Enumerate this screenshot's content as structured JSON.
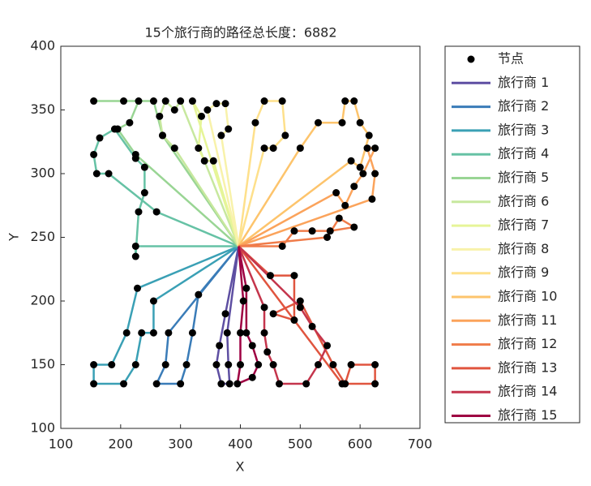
{
  "chart_data": {
    "type": "line",
    "title": "15个旅行商的路径总长度：6882",
    "xlabel": "X",
    "ylabel": "Y",
    "xlim": [
      100,
      700
    ],
    "ylim": [
      100,
      400
    ],
    "xticks": [
      100,
      200,
      300,
      400,
      500,
      600,
      700
    ],
    "yticks": [
      100,
      150,
      200,
      250,
      300,
      350,
      400
    ],
    "grid": false,
    "legend": "outside-right",
    "node_label": "节点",
    "node_color": "#000000",
    "series": [
      {
        "name": "旅行商 1",
        "color": "#5e4fa2",
        "x": [
          397,
          375,
          365,
          360,
          368,
          382,
          380,
          378,
          397
        ],
        "y": [
          243,
          190,
          165,
          150,
          135,
          135,
          150,
          175,
          243
        ]
      },
      {
        "name": "旅行商 2",
        "color": "#3a7cb8",
        "x": [
          397,
          330,
          320,
          310,
          300,
          260,
          275,
          280,
          397
        ],
        "y": [
          243,
          205,
          175,
          150,
          135,
          135,
          150,
          175,
          243
        ]
      },
      {
        "name": "旅行商 3",
        "color": "#3aa0b5",
        "x": [
          397,
          255,
          255,
          235,
          225,
          205,
          155,
          155,
          185,
          210,
          228,
          397
        ],
        "y": [
          243,
          200,
          175,
          175,
          150,
          135,
          135,
          150,
          150,
          175,
          210,
          243
        ]
      },
      {
        "name": "旅行商 4",
        "color": "#66c2a5",
        "x": [
          397,
          225,
          225,
          230,
          240,
          240,
          225,
          190,
          165,
          155,
          160,
          180,
          260,
          397
        ],
        "y": [
          243,
          243,
          235,
          270,
          285,
          305,
          312,
          335,
          328,
          315,
          300,
          300,
          270,
          243
        ]
      },
      {
        "name": "旅行商 5",
        "color": "#99d594",
        "x": [
          397,
          225,
          195,
          215,
          230,
          155,
          205,
          255,
          270,
          397
        ],
        "y": [
          243,
          315,
          335,
          340,
          357,
          357,
          357,
          357,
          330,
          243
        ]
      },
      {
        "name": "旅行商 6",
        "color": "#c7e89e",
        "x": [
          397,
          300,
          290,
          275,
          265,
          270,
          290,
          397
        ],
        "y": [
          243,
          357,
          350,
          357,
          345,
          330,
          320,
          243
        ]
      },
      {
        "name": "旅行商 7",
        "color": "#e6f598",
        "x": [
          397,
          320,
          335,
          330,
          340,
          355,
          397
        ],
        "y": [
          243,
          357,
          345,
          320,
          310,
          310,
          243
        ]
      },
      {
        "name": "旅行商 8",
        "color": "#f8f2aa",
        "x": [
          397,
          345,
          360,
          375,
          380,
          368,
          397
        ],
        "y": [
          243,
          350,
          355,
          355,
          335,
          330,
          243
        ]
      },
      {
        "name": "旅行商 9",
        "color": "#fee08b",
        "x": [
          397,
          425,
          440,
          470,
          475,
          455,
          440,
          397
        ],
        "y": [
          243,
          340,
          357,
          357,
          330,
          320,
          320,
          243
        ]
      },
      {
        "name": "旅行商 10",
        "color": "#fdc46c",
        "x": [
          397,
          500,
          530,
          570,
          575,
          590,
          600,
          615,
          600,
          585,
          397
        ],
        "y": [
          243,
          320,
          340,
          340,
          357,
          357,
          340,
          330,
          305,
          310,
          243
        ]
      },
      {
        "name": "旅行商 11",
        "color": "#fba35b",
        "x": [
          397,
          560,
          575,
          590,
          605,
          625,
          612,
          625,
          620,
          397
        ],
        "y": [
          243,
          285,
          275,
          290,
          300,
          320,
          320,
          300,
          280,
          243
        ]
      },
      {
        "name": "旅行商 12",
        "color": "#f07c4a",
        "x": [
          397,
          470,
          490,
          520,
          550,
          590,
          565,
          545,
          397
        ],
        "y": [
          243,
          243,
          255,
          255,
          255,
          258,
          265,
          250,
          243
        ]
      },
      {
        "name": "旅行商 13",
        "color": "#e0553f",
        "x": [
          397,
          450,
          490,
          490,
          455,
          500,
          555,
          575,
          585,
          625,
          625,
          570,
          397
        ],
        "y": [
          243,
          220,
          220,
          185,
          190,
          200,
          150,
          135,
          150,
          150,
          135,
          135,
          243
        ]
      },
      {
        "name": "旅行商 14",
        "color": "#c4354c",
        "x": [
          397,
          440,
          440,
          445,
          455,
          465,
          510,
          530,
          545,
          520,
          500,
          397
        ],
        "y": [
          243,
          195,
          175,
          160,
          150,
          135,
          135,
          150,
          165,
          180,
          195,
          243
        ]
      },
      {
        "name": "旅行商 15",
        "color": "#9e0142",
        "x": [
          397,
          410,
          410,
          420,
          430,
          420,
          395,
          400,
          400,
          405,
          397
        ],
        "y": [
          243,
          210,
          175,
          165,
          150,
          140,
          135,
          150,
          175,
          200,
          243
        ]
      }
    ]
  }
}
